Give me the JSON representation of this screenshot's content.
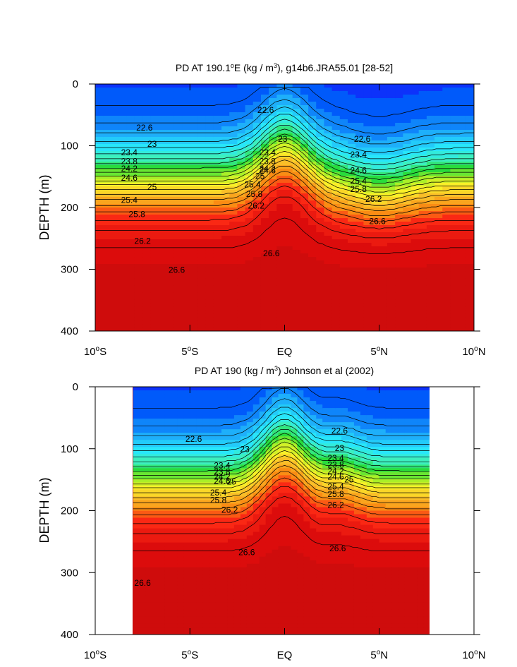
{
  "chart_data": [
    {
      "type": "contour",
      "title_parts": [
        "PD AT 190.1",
        "o",
        "E (kg / m",
        "3",
        "), g14b6.JRA55.01 [28-52]"
      ],
      "ylabel": "DEPTH (m)",
      "xlabel": "",
      "xlim": [
        -10,
        10
      ],
      "ylim": [
        400,
        0
      ],
      "yticks": [
        {
          "value": 0,
          "label": "0"
        },
        {
          "value": 100,
          "label": "100"
        },
        {
          "value": 200,
          "label": "200"
        },
        {
          "value": 300,
          "label": "300"
        },
        {
          "value": 400,
          "label": "400"
        }
      ],
      "xticks": [
        {
          "value": -10,
          "num": "10",
          "deg": "o",
          "hemi": "S"
        },
        {
          "value": -5,
          "num": "5",
          "deg": "o",
          "hemi": "S"
        },
        {
          "value": 0,
          "num": "EQ",
          "deg": "",
          "hemi": ""
        },
        {
          "value": 5,
          "num": "5",
          "deg": "o",
          "hemi": "N"
        },
        {
          "value": 10,
          "num": "10",
          "deg": "o",
          "hemi": "N"
        }
      ],
      "data_xrange": [
        -10,
        10
      ],
      "contour_interval": 0.2,
      "level_range": [
        21.6,
        27.0
      ],
      "contour_labels": [
        {
          "x": -1.0,
          "y": 43,
          "text": "22.6"
        },
        {
          "x": -7.4,
          "y": 72,
          "text": "22.6"
        },
        {
          "x": 4.1,
          "y": 90,
          "text": "22.6"
        },
        {
          "x": -7.0,
          "y": 98,
          "text": "23"
        },
        {
          "x": -0.1,
          "y": 90,
          "text": "23"
        },
        {
          "x": -8.2,
          "y": 112,
          "text": "23.4"
        },
        {
          "x": -0.9,
          "y": 112,
          "text": "23.4"
        },
        {
          "x": 3.9,
          "y": 115,
          "text": "23.4"
        },
        {
          "x": -8.2,
          "y": 126,
          "text": "23.8"
        },
        {
          "x": -0.9,
          "y": 126,
          "text": "23.8"
        },
        {
          "x": -8.2,
          "y": 138,
          "text": "24.2"
        },
        {
          "x": -0.9,
          "y": 138,
          "text": "24.2"
        },
        {
          "x": -8.2,
          "y": 153,
          "text": "24.6"
        },
        {
          "x": -0.9,
          "y": 141,
          "text": "24.6"
        },
        {
          "x": 3.9,
          "y": 141,
          "text": "24.6"
        },
        {
          "x": -7.0,
          "y": 168,
          "text": "25"
        },
        {
          "x": -1.3,
          "y": 150,
          "text": "25"
        },
        {
          "x": 3.9,
          "y": 158,
          "text": "25.4"
        },
        {
          "x": -8.2,
          "y": 189,
          "text": "25.4"
        },
        {
          "x": -1.7,
          "y": 164,
          "text": "25.4"
        },
        {
          "x": 3.9,
          "y": 171,
          "text": "25.8"
        },
        {
          "x": -7.8,
          "y": 212,
          "text": "25.8"
        },
        {
          "x": -1.6,
          "y": 179,
          "text": "25.8"
        },
        {
          "x": -1.5,
          "y": 198,
          "text": "26.2"
        },
        {
          "x": 4.7,
          "y": 187,
          "text": "26.2"
        },
        {
          "x": -7.5,
          "y": 255,
          "text": "26.2"
        },
        {
          "x": -0.7,
          "y": 275,
          "text": "26.6"
        },
        {
          "x": 4.9,
          "y": 223,
          "text": "26.6"
        },
        {
          "x": -5.7,
          "y": 302,
          "text": "26.6"
        }
      ]
    },
    {
      "type": "contour",
      "title_parts": [
        "PD AT 190 (kg / m",
        "3",
        ") Johnson et al (2002)"
      ],
      "ylabel": "DEPTH (m)",
      "xlabel": "",
      "xlim": [
        -10,
        10
      ],
      "ylim": [
        400,
        0
      ],
      "yticks": [
        {
          "value": 0,
          "label": "0"
        },
        {
          "value": 100,
          "label": "100"
        },
        {
          "value": 200,
          "label": "200"
        },
        {
          "value": 300,
          "label": "300"
        },
        {
          "value": 400,
          "label": "400"
        }
      ],
      "xticks": [
        {
          "value": -10,
          "num": "10",
          "deg": "o",
          "hemi": "S"
        },
        {
          "value": -5,
          "num": "5",
          "deg": "o",
          "hemi": "S"
        },
        {
          "value": 0,
          "num": "EQ",
          "deg": "",
          "hemi": ""
        },
        {
          "value": 5,
          "num": "5",
          "deg": "o",
          "hemi": "N"
        },
        {
          "value": 10,
          "num": "10",
          "deg": "o",
          "hemi": "N"
        }
      ],
      "data_xrange": [
        -8,
        8
      ],
      "contour_interval": 0.2,
      "level_range": [
        21.6,
        27.0
      ],
      "contour_labels": [
        {
          "x": -4.8,
          "y": 85,
          "text": "22.6"
        },
        {
          "x": 2.9,
          "y": 72,
          "text": "22.6"
        },
        {
          "x": -2.1,
          "y": 102,
          "text": "23"
        },
        {
          "x": 2.9,
          "y": 100,
          "text": "23"
        },
        {
          "x": -3.3,
          "y": 128,
          "text": "23.4"
        },
        {
          "x": 2.7,
          "y": 116,
          "text": "23.4"
        },
        {
          "x": -3.3,
          "y": 138,
          "text": "23.8"
        },
        {
          "x": 2.7,
          "y": 127,
          "text": "23.8"
        },
        {
          "x": -3.3,
          "y": 146,
          "text": "24.2"
        },
        {
          "x": 2.7,
          "y": 137,
          "text": "24.2"
        },
        {
          "x": -3.3,
          "y": 153,
          "text": "24.6"
        },
        {
          "x": 2.7,
          "y": 146,
          "text": "24.6"
        },
        {
          "x": -2.8,
          "y": 154,
          "text": "25"
        },
        {
          "x": 3.4,
          "y": 151,
          "text": "25"
        },
        {
          "x": -3.5,
          "y": 172,
          "text": "25.4"
        },
        {
          "x": 2.7,
          "y": 162,
          "text": "25.4"
        },
        {
          "x": -3.5,
          "y": 184,
          "text": "25.8"
        },
        {
          "x": 2.7,
          "y": 174,
          "text": "25.8"
        },
        {
          "x": -2.9,
          "y": 200,
          "text": "26.2"
        },
        {
          "x": 2.7,
          "y": 192,
          "text": "26.2"
        },
        {
          "x": -2.0,
          "y": 268,
          "text": "26.6"
        },
        {
          "x": 2.8,
          "y": 262,
          "text": "26.6"
        },
        {
          "x": -7.5,
          "y": 318,
          "text": "26.6"
        }
      ]
    }
  ]
}
